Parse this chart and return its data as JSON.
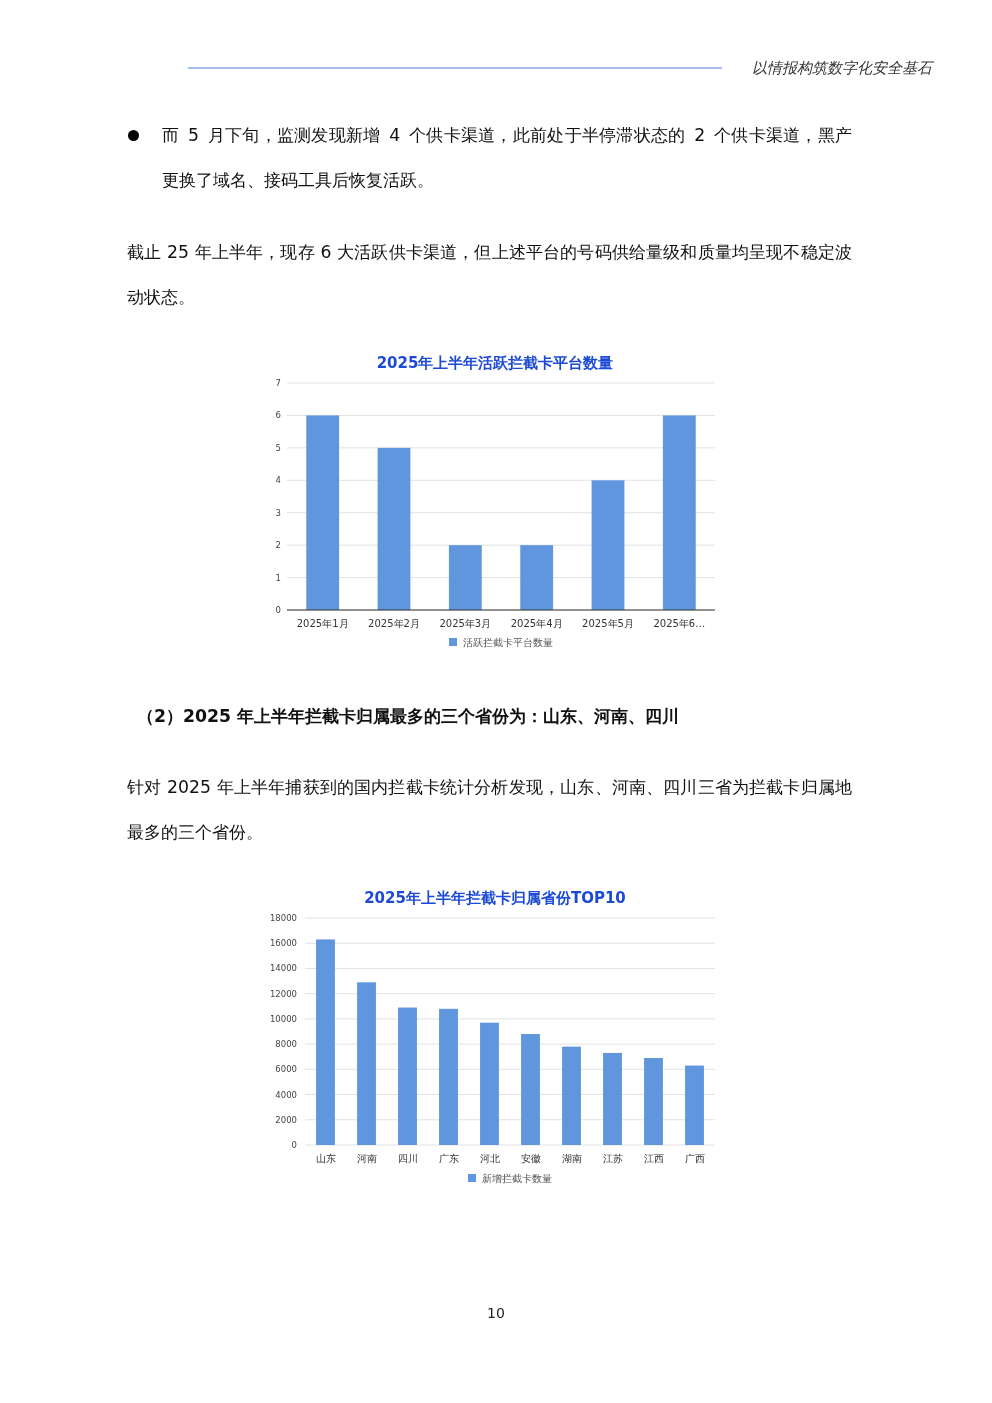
{
  "chart_data": [
    {
      "type": "bar",
      "title": "2025年上半年活跃拦截卡平台数量",
      "categories": [
        "2025年1月",
        "2025年2月",
        "2025年3月",
        "2025年4月",
        "2025年5月",
        "2025年6…"
      ],
      "series": [
        {
          "name": "活跃拦截卡平台数量",
          "color": "#6096de",
          "values": [
            6,
            5,
            2,
            2,
            4,
            6
          ]
        }
      ],
      "ylim": [
        0,
        7
      ],
      "yticks": [
        0,
        1,
        2,
        3,
        4,
        5,
        6,
        7
      ],
      "grid": "y",
      "legend": "bottom",
      "annotations": [
        "以情报构筑数字化安全基石",
        "而 5 月下旬，监测发现新增 4 个供卡渠道，此前处于半停滞状态的 2 个供卡渠道，黑产更换了域名、接码工具后恢复活跃。",
        "截止 25 年上半年，现存 6 大活跃供卡渠道，但上述平台的号码供给量级和质量均呈现不稳定波动状态。"
      ]
    },
    {
      "type": "bar",
      "title": "2025年上半年拦截卡归属省份TOP10",
      "categories": [
        "山东",
        "河南",
        "四川",
        "广东",
        "河北",
        "安徽",
        "湖南",
        "江苏",
        "江西",
        "广西"
      ],
      "series": [
        {
          "name": "新增拦截卡数量",
          "color": "#6096de",
          "values": [
            16300,
            12900,
            10900,
            10800,
            9700,
            8800,
            7800,
            7300,
            6900,
            6300
          ]
        }
      ],
      "ylim": [
        0,
        18000
      ],
      "yticks": [
        0,
        2000,
        4000,
        6000,
        8000,
        10000,
        12000,
        14000,
        16000,
        18000
      ],
      "grid": "y",
      "legend": "bottom",
      "annotations": [
        "（2）2025 年上半年拦截卡归属最多的三个省份为：山东、河南、四川",
        "针对 2025 年上半年捕获到的国内拦截卡统计分析发现，山东、河南、四川三省为拦截卡归属地最多的三个省份。",
        "10"
      ]
    }
  ]
}
